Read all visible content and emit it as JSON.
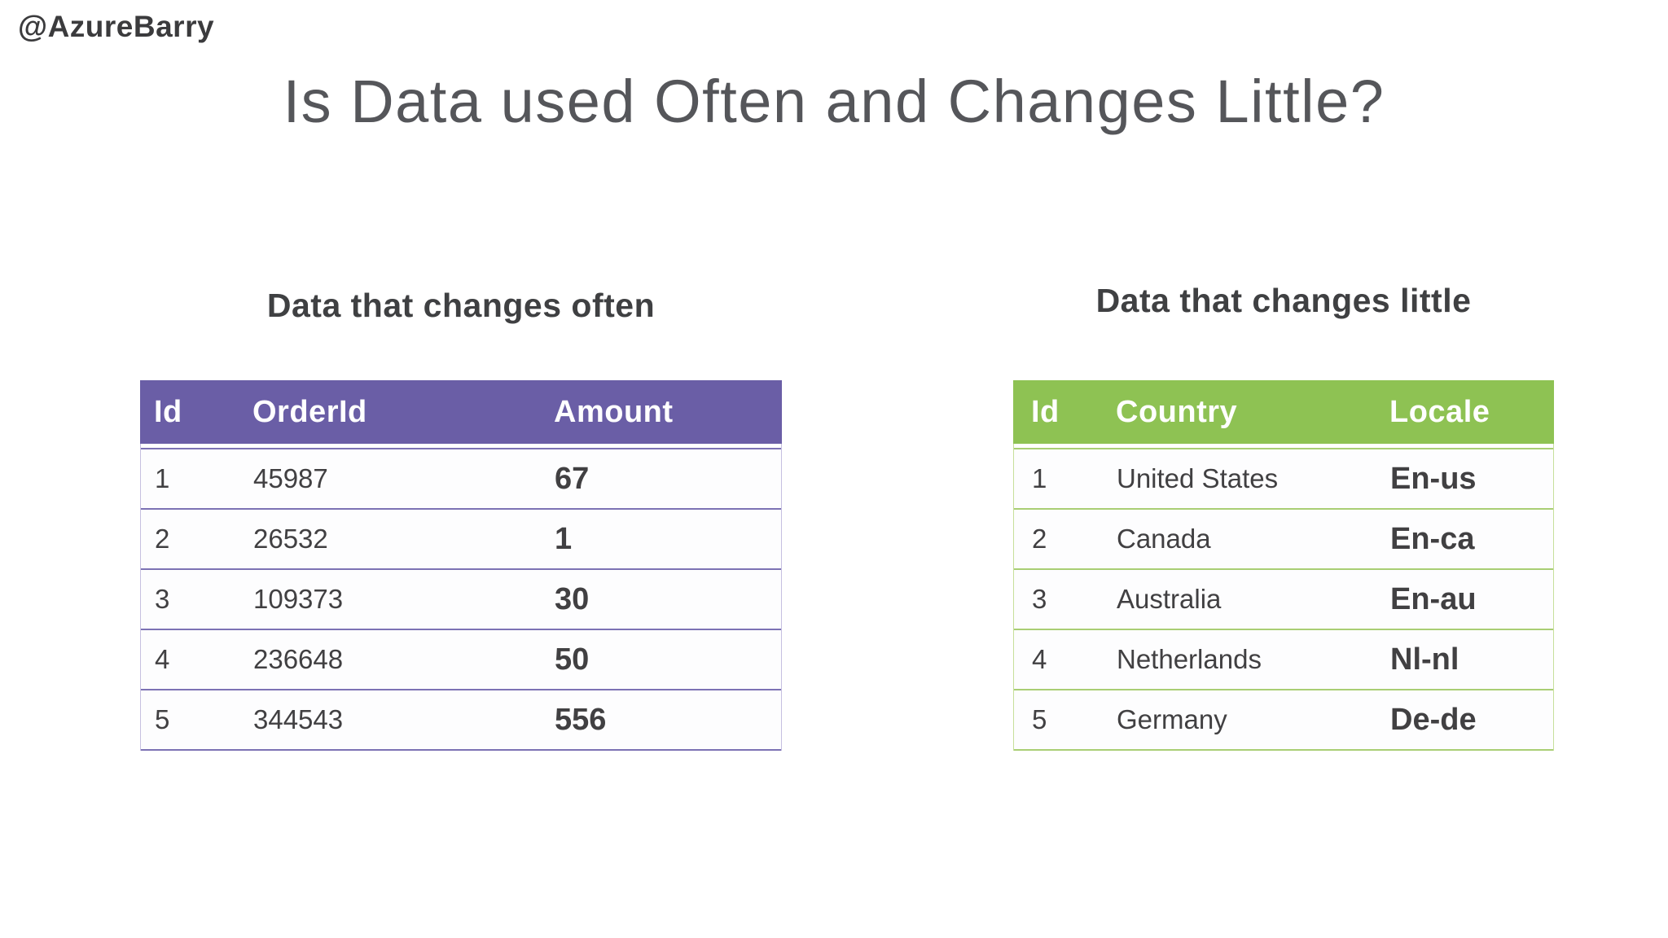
{
  "slide": {
    "handle": "@AzureBarry",
    "title": "Is Data used Often and Changes Little?"
  },
  "tables": {
    "often": {
      "caption": "Data that changes often",
      "theme": {
        "header_bg": "#6A5EA6",
        "line": "#7C72B4",
        "outer": "#C6C0E0",
        "header_text": "#FFFFFF"
      },
      "columns": [
        "Id",
        "OrderId",
        "Amount"
      ],
      "rows": [
        [
          "1",
          "45987",
          "67"
        ],
        [
          "2",
          "26532",
          "1"
        ],
        [
          "3",
          "109373",
          "30"
        ],
        [
          "4",
          "236648",
          "50"
        ],
        [
          "5",
          "344543",
          "556"
        ]
      ]
    },
    "little": {
      "caption": "Data that changes little",
      "theme": {
        "header_bg": "#8EC253",
        "line": "#A9CE74",
        "outer": "#C7DF9B",
        "header_text": "#FFFFFF"
      },
      "columns": [
        "Id",
        "Country",
        "Locale"
      ],
      "rows": [
        [
          "1",
          "United States",
          "En-us"
        ],
        [
          "2",
          "Canada",
          "En-ca"
        ],
        [
          "3",
          "Australia",
          "En-au"
        ],
        [
          "4",
          "Netherlands",
          "Nl-nl"
        ],
        [
          "5",
          "Germany",
          "De-de"
        ]
      ]
    }
  },
  "colors": {
    "text_dark": "#414042",
    "title_gray": "#55565A",
    "row_bg": "#FDFDFE"
  }
}
